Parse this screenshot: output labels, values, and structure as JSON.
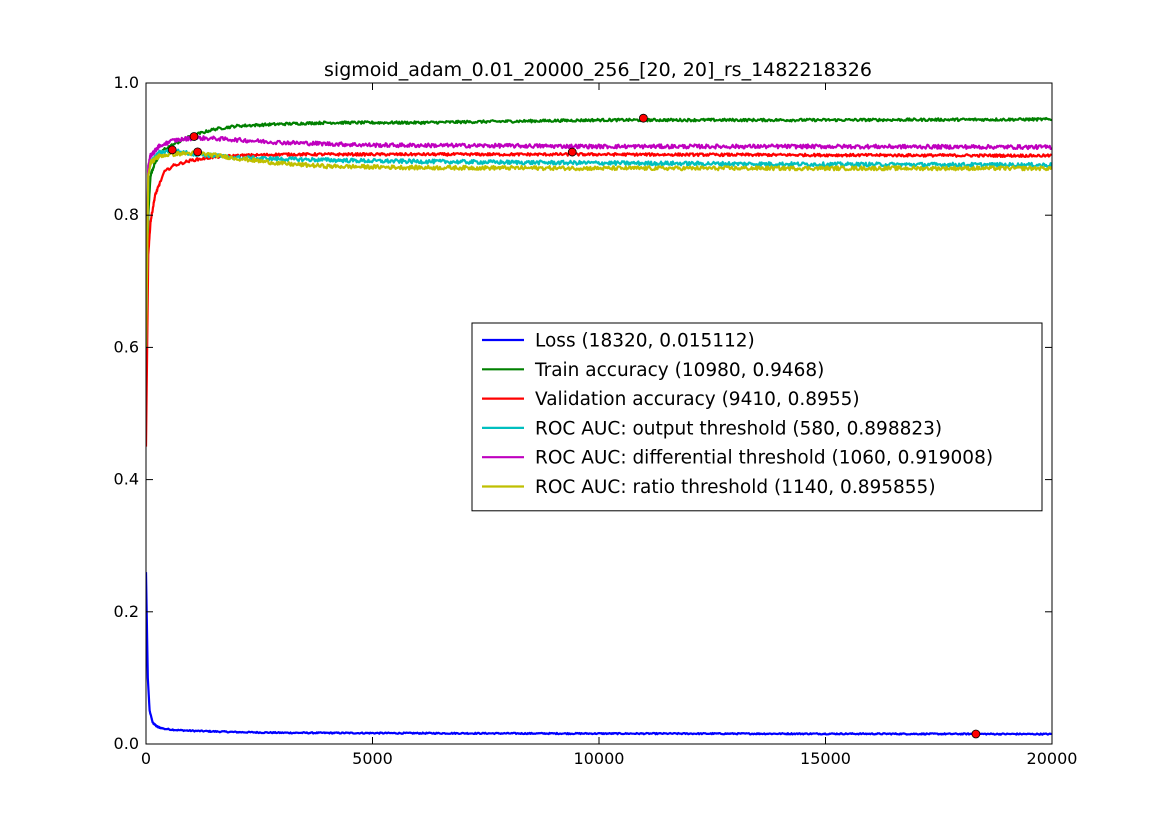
{
  "chart_data": {
    "type": "line",
    "title": "sigmoid_adam_0.01_20000_256_[20, 20]_rs_1482218326",
    "xlabel": "",
    "ylabel": "",
    "xlim": [
      0,
      20000
    ],
    "ylim": [
      0.0,
      1.0
    ],
    "x_ticks": [
      0,
      5000,
      10000,
      15000,
      20000
    ],
    "x_tick_labels": [
      "0",
      "5000",
      "10000",
      "15000",
      "20000"
    ],
    "y_ticks": [
      0.0,
      0.2,
      0.4,
      0.6,
      0.8,
      1.0
    ],
    "y_tick_labels": [
      "0.0",
      "0.2",
      "0.4",
      "0.6",
      "0.8",
      "1.0"
    ],
    "grid": false,
    "legend_position": "center-right",
    "marker_color": "#ff0000",
    "series": [
      {
        "name": "Loss (18320, 0.015112)",
        "color": "#0000ff",
        "noise": 0.001,
        "best": [
          18320,
          0.015112
        ],
        "points": [
          [
            0,
            0.26
          ],
          [
            40,
            0.1
          ],
          [
            80,
            0.05
          ],
          [
            150,
            0.032
          ],
          [
            250,
            0.026
          ],
          [
            400,
            0.023
          ],
          [
            700,
            0.021
          ],
          [
            1000,
            0.02
          ],
          [
            2000,
            0.018
          ],
          [
            3000,
            0.017
          ],
          [
            5000,
            0.0165
          ],
          [
            8000,
            0.016
          ],
          [
            10000,
            0.0158
          ],
          [
            15000,
            0.0155
          ],
          [
            20000,
            0.015
          ]
        ]
      },
      {
        "name": "Train accuracy (10980, 0.9468)",
        "color": "#008000",
        "noise": 0.002,
        "best": [
          10980,
          0.9468
        ],
        "points": [
          [
            0,
            0.5
          ],
          [
            50,
            0.8
          ],
          [
            100,
            0.86
          ],
          [
            200,
            0.88
          ],
          [
            400,
            0.9
          ],
          [
            700,
            0.91
          ],
          [
            1000,
            0.92
          ],
          [
            1500,
            0.93
          ],
          [
            2000,
            0.935
          ],
          [
            3000,
            0.938
          ],
          [
            4000,
            0.94
          ],
          [
            6000,
            0.94
          ],
          [
            8000,
            0.942
          ],
          [
            10000,
            0.944
          ],
          [
            12000,
            0.944
          ],
          [
            15000,
            0.944
          ],
          [
            20000,
            0.945
          ]
        ]
      },
      {
        "name": "Validation accuracy (9410, 0.8955)",
        "color": "#ff0000",
        "noise": 0.002,
        "best": [
          9410,
          0.8955
        ],
        "points": [
          [
            0,
            0.45
          ],
          [
            50,
            0.74
          ],
          [
            100,
            0.79
          ],
          [
            200,
            0.83
          ],
          [
            400,
            0.865
          ],
          [
            600,
            0.875
          ],
          [
            1000,
            0.883
          ],
          [
            1500,
            0.888
          ],
          [
            2000,
            0.89
          ],
          [
            3000,
            0.892
          ],
          [
            5000,
            0.892
          ],
          [
            8000,
            0.892
          ],
          [
            10000,
            0.892
          ],
          [
            15000,
            0.891
          ],
          [
            20000,
            0.89
          ]
        ]
      },
      {
        "name": "ROC AUC: output threshold (580, 0.898823)",
        "color": "#00bfbf",
        "noise": 0.003,
        "best": [
          580,
          0.898823
        ],
        "points": [
          [
            0,
            0.6
          ],
          [
            50,
            0.86
          ],
          [
            100,
            0.88
          ],
          [
            300,
            0.895
          ],
          [
            580,
            0.898
          ],
          [
            1000,
            0.893
          ],
          [
            2000,
            0.887
          ],
          [
            3000,
            0.885
          ],
          [
            5000,
            0.882
          ],
          [
            8000,
            0.88
          ],
          [
            10000,
            0.879
          ],
          [
            15000,
            0.877
          ],
          [
            20000,
            0.876
          ]
        ]
      },
      {
        "name": "ROC AUC: differential threshold (1060, 0.919008)",
        "color": "#bf00bf",
        "noise": 0.003,
        "best": [
          1060,
          0.919008
        ],
        "points": [
          [
            0,
            0.6
          ],
          [
            50,
            0.875
          ],
          [
            100,
            0.89
          ],
          [
            300,
            0.905
          ],
          [
            600,
            0.913
          ],
          [
            1060,
            0.917
          ],
          [
            1500,
            0.916
          ],
          [
            2000,
            0.914
          ],
          [
            3000,
            0.91
          ],
          [
            5000,
            0.906
          ],
          [
            8000,
            0.905
          ],
          [
            10000,
            0.904
          ],
          [
            15000,
            0.904
          ],
          [
            20000,
            0.903
          ]
        ]
      },
      {
        "name": "ROC AUC: ratio threshold (1140, 0.895855)",
        "color": "#bfbf00",
        "noise": 0.003,
        "best": [
          1140,
          0.895855
        ],
        "points": [
          [
            0,
            0.6
          ],
          [
            50,
            0.86
          ],
          [
            100,
            0.88
          ],
          [
            300,
            0.89
          ],
          [
            700,
            0.893
          ],
          [
            1140,
            0.894
          ],
          [
            1500,
            0.891
          ],
          [
            2000,
            0.886
          ],
          [
            3000,
            0.878
          ],
          [
            4000,
            0.874
          ],
          [
            6000,
            0.872
          ],
          [
            10000,
            0.871
          ],
          [
            15000,
            0.871
          ],
          [
            20000,
            0.871
          ]
        ]
      }
    ]
  }
}
